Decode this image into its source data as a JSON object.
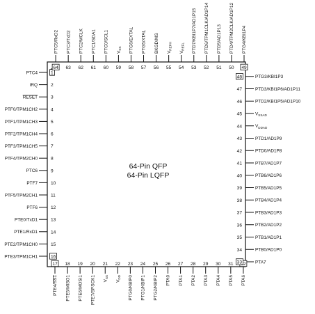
{
  "title_lines": [
    "64-Pin QFP",
    "64-Pin LQFP"
  ],
  "pins": [
    {
      "n": "1",
      "side": "left",
      "name": "PTC4",
      "boxed": true
    },
    {
      "n": "2",
      "side": "left",
      "name": "IRQ"
    },
    {
      "n": "3",
      "side": "left",
      "name": "RESET",
      "overline": true
    },
    {
      "n": "4",
      "side": "left",
      "name": "PTF0/TPM1CH2"
    },
    {
      "n": "5",
      "side": "left",
      "name": "PTF1/TPM1CH3"
    },
    {
      "n": "6",
      "side": "left",
      "name": "PTF2/TPM1CH4"
    },
    {
      "n": "7",
      "side": "left",
      "name": "PTF3/TPM1CH5"
    },
    {
      "n": "8",
      "side": "left",
      "name": "PTF4/TPM2CH0"
    },
    {
      "n": "9",
      "side": "left",
      "name": "PTC6"
    },
    {
      "n": "10",
      "side": "left",
      "name": "PTF7"
    },
    {
      "n": "11",
      "side": "left",
      "name": "PTF5/TPM2CH1"
    },
    {
      "n": "12",
      "side": "left",
      "name": "PTF6"
    },
    {
      "n": "13",
      "side": "left",
      "name": "PTE0/TxD1"
    },
    {
      "n": "14",
      "side": "left",
      "name": "PTE1/RxD1"
    },
    {
      "n": "15",
      "side": "left",
      "name": "PTE2/TPM1CH0"
    },
    {
      "n": "16",
      "side": "left",
      "name": "PTE3/TPM1CH1",
      "boxed": true
    },
    {
      "n": "17",
      "side": "bottom",
      "name": "PTE4/SS1",
      "overline_part": "SS1",
      "boxed": true
    },
    {
      "n": "18",
      "side": "bottom",
      "name": "PTE5/MISO1"
    },
    {
      "n": "19",
      "side": "bottom",
      "name": "PTE6/MOSI1"
    },
    {
      "n": "20",
      "side": "bottom",
      "name": "PTE7/SPSCK1"
    },
    {
      "n": "21",
      "side": "bottom",
      "name": "V",
      "sub": "SS"
    },
    {
      "n": "22",
      "side": "bottom",
      "name": "V",
      "sub": "DD"
    },
    {
      "n": "23",
      "side": "bottom",
      "name": "PTG0/KBIP0"
    },
    {
      "n": "24",
      "side": "bottom",
      "name": "PTG1/KBIP1"
    },
    {
      "n": "25",
      "side": "bottom",
      "name": "PTG2/KBIP2"
    },
    {
      "n": "26",
      "side": "bottom",
      "name": "PTA0"
    },
    {
      "n": "27",
      "side": "bottom",
      "name": "PTA1"
    },
    {
      "n": "28",
      "side": "bottom",
      "name": "PTA2"
    },
    {
      "n": "29",
      "side": "bottom",
      "name": "PTA3"
    },
    {
      "n": "30",
      "side": "bottom",
      "name": "PTA4"
    },
    {
      "n": "31",
      "side": "bottom",
      "name": "PTA5"
    },
    {
      "n": "32",
      "side": "bottom",
      "name": "PTA6",
      "boxed": true
    },
    {
      "n": "33",
      "side": "right",
      "name": "PTA7",
      "boxed": true
    },
    {
      "n": "34",
      "side": "right",
      "name": "PTB0/AD1P0"
    },
    {
      "n": "35",
      "side": "right",
      "name": "PTB1/AD1P1"
    },
    {
      "n": "36",
      "side": "right",
      "name": "PTB2/AD1P2"
    },
    {
      "n": "37",
      "side": "right",
      "name": "PTB3/AD1P3"
    },
    {
      "n": "38",
      "side": "right",
      "name": "PTB4/AD1P4"
    },
    {
      "n": "39",
      "side": "right",
      "name": "PTB5/AD1P5"
    },
    {
      "n": "40",
      "side": "right",
      "name": "PTB6/AD1P6"
    },
    {
      "n": "41",
      "side": "right",
      "name": "PTB7/AD1P7"
    },
    {
      "n": "42",
      "side": "right",
      "name": "PTD0/AD1P8"
    },
    {
      "n": "43",
      "side": "right",
      "name": "PTD1/AD1P9"
    },
    {
      "n": "44",
      "side": "right",
      "name": "V",
      "sub": "DDAD"
    },
    {
      "n": "45",
      "side": "right",
      "name": "V",
      "sub": "SSAD"
    },
    {
      "n": "46",
      "side": "right",
      "name": "PTD2/KBI1P5/AD1P10"
    },
    {
      "n": "47",
      "side": "right",
      "name": "PTD3/KBI1P6/AD1P11"
    },
    {
      "n": "48",
      "side": "right",
      "name": "PTG3/KBI1P3",
      "boxed": true
    },
    {
      "n": "49",
      "side": "top",
      "name": "PTG4/KBI1P4",
      "boxed": true
    },
    {
      "n": "50",
      "side": "top",
      "name": "PTD4/TPM2CLK/AD1P12"
    },
    {
      "n": "51",
      "side": "top",
      "name": "PTD5/AD1P13"
    },
    {
      "n": "52",
      "side": "top",
      "name": "PTD6/TPM1CLK/AD1P14"
    },
    {
      "n": "53",
      "side": "top",
      "name": "PTD7/KBI1P7/AD1P15"
    },
    {
      "n": "54",
      "side": "top",
      "name": "V",
      "sub": "REFL"
    },
    {
      "n": "55",
      "side": "top",
      "name": "V",
      "sub": "REFH"
    },
    {
      "n": "56",
      "side": "top",
      "name": "BKGD/MS"
    },
    {
      "n": "57",
      "side": "top",
      "name": "PTG5/XTAL"
    },
    {
      "n": "58",
      "side": "top",
      "name": "PTG6/EXTAL"
    },
    {
      "n": "59",
      "side": "top",
      "name": "V",
      "sub": "SS"
    },
    {
      "n": "60",
      "side": "top",
      "name": "PTC0/SCL1"
    },
    {
      "n": "61",
      "side": "top",
      "name": "PTC1/SDA1"
    },
    {
      "n": "62",
      "side": "top",
      "name": "PTC2/MCLK"
    },
    {
      "n": "63",
      "side": "top",
      "name": "PTC3/TxD2"
    },
    {
      "n": "64",
      "side": "top",
      "name": "PTC5/RxD2",
      "boxed": true
    }
  ]
}
